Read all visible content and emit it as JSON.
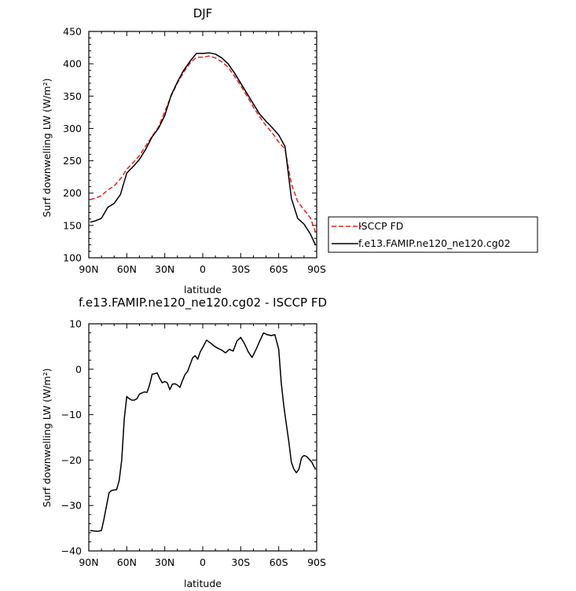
{
  "chart_data": [
    {
      "type": "line",
      "title": "DJF",
      "xlabel": "latitude",
      "ylabel": "Surf downwelling LW (W/m²)",
      "ylim": [
        100,
        450
      ],
      "xlim": [
        90,
        -90
      ],
      "xticks": [
        90,
        60,
        30,
        0,
        -30,
        -60,
        -90
      ],
      "xtick_labels": [
        "90N",
        "60N",
        "30N",
        "0",
        "30S",
        "60S",
        "90S"
      ],
      "yticks": [
        100,
        150,
        200,
        250,
        300,
        350,
        400,
        450
      ],
      "ytick_labels": [
        "100",
        "150",
        "200",
        "250",
        "300",
        "350",
        "400",
        "450"
      ],
      "legend_position": "right",
      "series": [
        {
          "name": "ISCCP FD",
          "color": "#e8201a",
          "style": "dashed",
          "x": [
            89,
            85,
            80,
            75,
            70,
            65,
            60,
            55,
            50,
            45,
            40,
            35,
            30,
            25,
            20,
            15,
            10,
            5,
            0,
            -5,
            -10,
            -15,
            -20,
            -25,
            -30,
            -35,
            -40,
            -45,
            -50,
            -55,
            -60,
            -65,
            -70,
            -75,
            -80,
            -85,
            -89
          ],
          "y": [
            190,
            192,
            196,
            205,
            211,
            222,
            237,
            247,
            258,
            273,
            288,
            302,
            326,
            350,
            370,
            387,
            401,
            410,
            410,
            412,
            409,
            403,
            395,
            381,
            366,
            350,
            333,
            318,
            304,
            293,
            279,
            268,
            214,
            187,
            174,
            162,
            140
          ]
        },
        {
          "name": "f.e13.FAMIP.ne120_ne120.cg02",
          "color": "#000000",
          "style": "solid",
          "x": [
            89,
            85,
            80,
            75,
            70,
            65,
            60,
            55,
            50,
            45,
            40,
            35,
            30,
            25,
            20,
            15,
            10,
            5,
            0,
            -5,
            -10,
            -15,
            -20,
            -25,
            -30,
            -35,
            -40,
            -45,
            -50,
            -55,
            -60,
            -65,
            -70,
            -75,
            -80,
            -85,
            -89
          ],
          "y": [
            155,
            157,
            161,
            178,
            184,
            198,
            231,
            241,
            252,
            268,
            287,
            300,
            320,
            351,
            372,
            390,
            404,
            416,
            416,
            417,
            415,
            409,
            400,
            386,
            370,
            354,
            338,
            322,
            311,
            301,
            290,
            272,
            192,
            161,
            152,
            137,
            120
          ]
        }
      ]
    },
    {
      "type": "line",
      "title": "f.e13.FAMIP.ne120_ne120.cg02 - ISCCP FD",
      "xlabel": "latitude",
      "ylabel": "Surf downwelling LW (W/m²)",
      "ylim": [
        -40,
        10
      ],
      "xlim": [
        90,
        -90
      ],
      "xticks": [
        90,
        60,
        30,
        0,
        -30,
        -60,
        -90
      ],
      "xtick_labels": [
        "90N",
        "60N",
        "30N",
        "0",
        "30S",
        "60S",
        "90S"
      ],
      "yticks": [
        -40,
        -30,
        -20,
        -10,
        0,
        10
      ],
      "ytick_labels": [
        "−40",
        "−30",
        "−20",
        "−10",
        "0",
        "10"
      ],
      "series": [
        {
          "color": "#000000",
          "style": "solid",
          "x": [
            89,
            86,
            83,
            80,
            78,
            76,
            74,
            72,
            70,
            68,
            66,
            64,
            62,
            60,
            58,
            56,
            54,
            52,
            50,
            48,
            46,
            44,
            42,
            40,
            38,
            36,
            34,
            32,
            30,
            28,
            26,
            24,
            22,
            20,
            18,
            16,
            14,
            12,
            10,
            8,
            6,
            4,
            2,
            0,
            -3,
            -6,
            -9,
            -12,
            -15,
            -18,
            -21,
            -24,
            -27,
            -30,
            -33,
            -36,
            -39,
            -42,
            -45,
            -48,
            -51,
            -54,
            -57,
            -60,
            -62,
            -64,
            -66,
            -68,
            -70,
            -72,
            -74,
            -76,
            -78,
            -80,
            -82,
            -84,
            -86,
            -88,
            -89
          ],
          "y": [
            -35.5,
            -35.6,
            -35.7,
            -35.5,
            -33,
            -30,
            -27.2,
            -26.7,
            -26.6,
            -26.5,
            -24.5,
            -20,
            -11,
            -6.0,
            -6.5,
            -6.8,
            -6.8,
            -6.5,
            -5.5,
            -5.2,
            -5.0,
            -5.1,
            -3.5,
            -1.1,
            -1.0,
            -0.8,
            -2.0,
            -3.0,
            -2.7,
            -3.0,
            -4.5,
            -3.3,
            -3.2,
            -3.5,
            -4.0,
            -2.5,
            -1.2,
            -0.5,
            1.0,
            2.5,
            3.0,
            2.2,
            3.8,
            4.8,
            6.4,
            5.8,
            5.1,
            4.6,
            4.2,
            3.6,
            4.4,
            4.0,
            6.2,
            7.0,
            5.6,
            3.8,
            2.6,
            4.3,
            6.2,
            8.0,
            7.6,
            7.4,
            7.6,
            4.4,
            -3,
            -8,
            -12,
            -16,
            -20.5,
            -22.0,
            -22.8,
            -22.0,
            -19.5,
            -19.0,
            -19.2,
            -19.8,
            -20.4,
            -21.5,
            -21.8
          ]
        }
      ]
    }
  ],
  "legend": {
    "items": [
      {
        "label": "ISCCP FD"
      },
      {
        "label": "f.e13.FAMIP.ne120_ne120.cg02"
      }
    ]
  }
}
